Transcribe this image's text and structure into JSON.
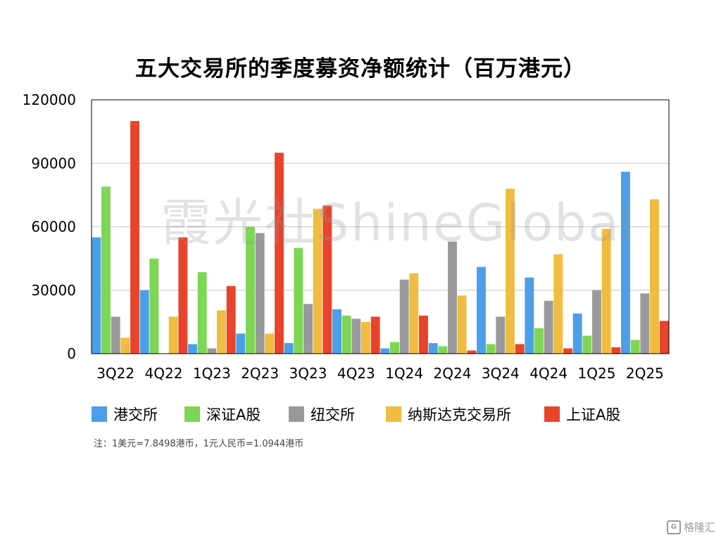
{
  "chart_data": {
    "type": "bar",
    "title": "五大交易所的季度募资净额统计（百万港元）",
    "categories": [
      "3Q22",
      "4Q22",
      "1Q23",
      "2Q23",
      "3Q23",
      "4Q23",
      "1Q24",
      "2Q24",
      "3Q24",
      "4Q24",
      "1Q25",
      "2Q25"
    ],
    "ylim": [
      0,
      120000
    ],
    "yticks": [
      "0",
      "30000",
      "60000",
      "90000",
      "120000"
    ],
    "grid": true,
    "legend_position": "bottom",
    "series": [
      {
        "name": "港交所",
        "color": "#4A9FE8",
        "values": [
          55000,
          30000,
          4500,
          9500,
          5000,
          21000,
          2500,
          5000,
          41000,
          36000,
          19000,
          86000
        ]
      },
      {
        "name": "深证A股",
        "color": "#7DD654",
        "values": [
          79000,
          45000,
          38500,
          60000,
          50000,
          18000,
          5500,
          3500,
          4500,
          12000,
          8500,
          6500
        ]
      },
      {
        "name": "纽交所",
        "color": "#999999",
        "values": [
          17500,
          0,
          2500,
          57000,
          23500,
          16500,
          35000,
          53000,
          17500,
          25000,
          30000,
          28500
        ]
      },
      {
        "name": "纳斯达克交易所",
        "color": "#F0BC41",
        "values": [
          7500,
          17500,
          20500,
          9500,
          68500,
          15000,
          38000,
          27500,
          78000,
          47000,
          59000,
          73000
        ]
      },
      {
        "name": "上证A股",
        "color": "#E8432B",
        "values": [
          110000,
          55000,
          32000,
          95000,
          70000,
          17500,
          18000,
          1500,
          4500,
          2500,
          3000,
          15500
        ]
      }
    ]
  },
  "note": "注：1美元=7.8498港币，1元人民币=1.0944港币",
  "watermark": "霞光社ShineGlobal",
  "corner_brand": "格隆汇"
}
